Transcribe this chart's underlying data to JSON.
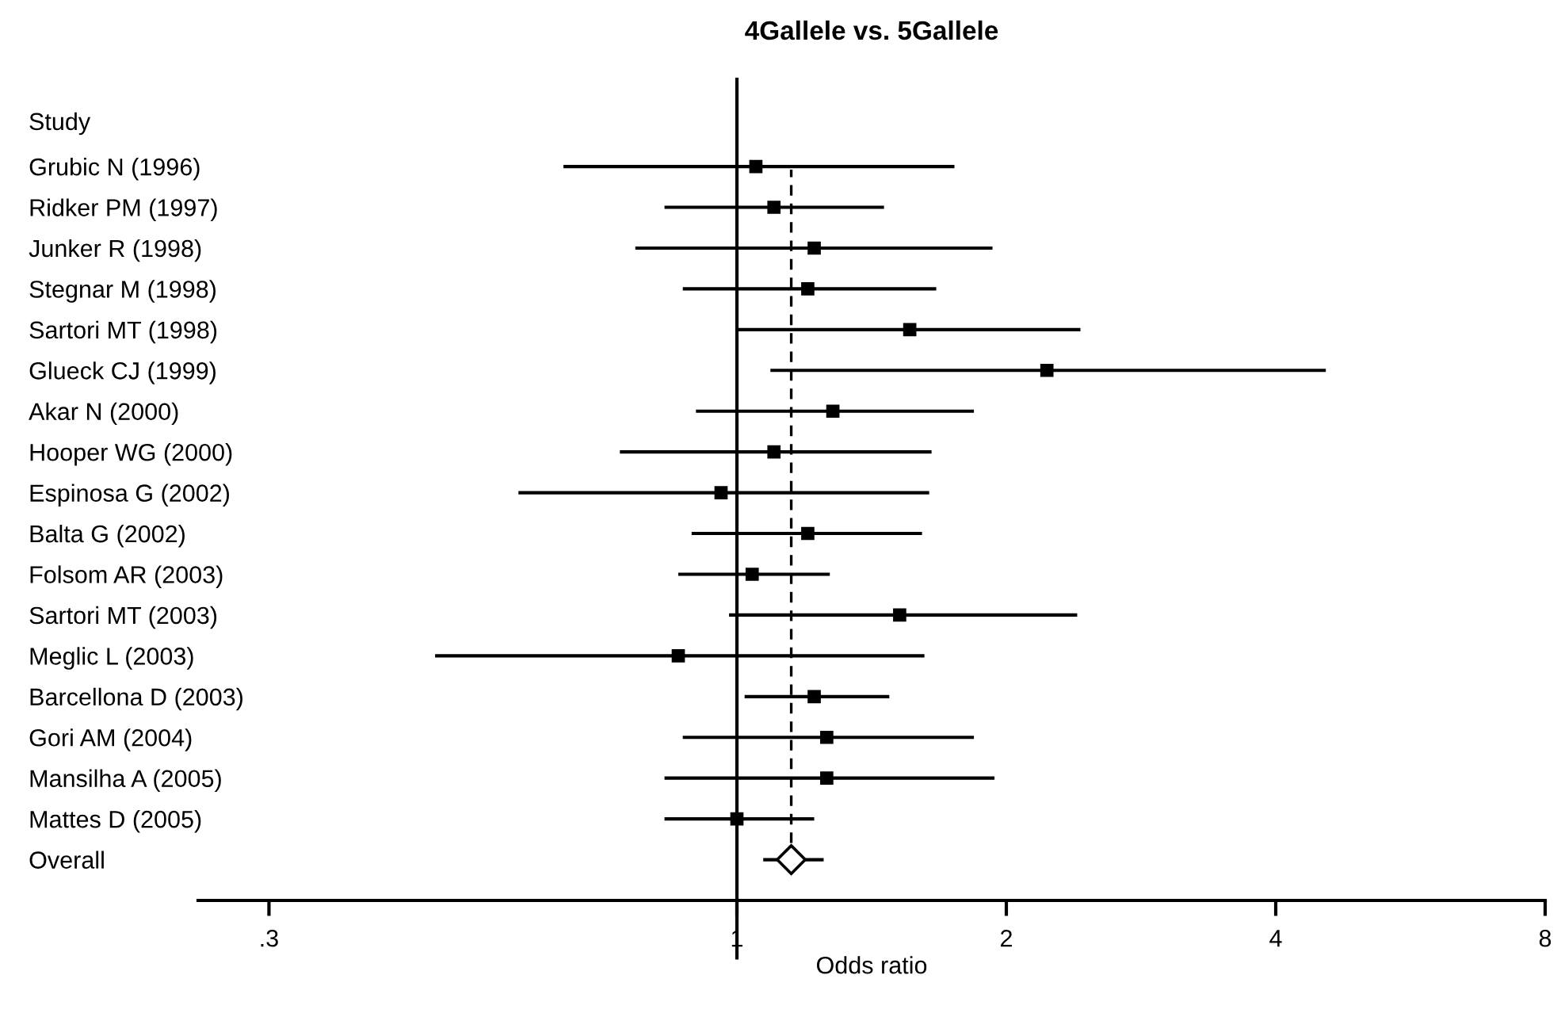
{
  "chart_data": {
    "type": "scatter",
    "orientation": "horizontal",
    "title": "4Gallele vs. 5Gallele",
    "xlabel": "Odds ratio",
    "ylabel": "Study",
    "categories": [
      "Grubic N (1996)",
      "Ridker PM (1997)",
      "Junker R (1998)",
      "Stegnar M (1998)",
      "Sartori MT (1998)",
      "Glueck CJ (1999)",
      "Akar N (2000)",
      "Hooper WG (2000)",
      "Espinosa G (2002)",
      "Balta G (2002)",
      "Folsom AR (2003)",
      "Sartori MT (2003)",
      "Meglic L (2003)",
      "Barcellona D (2003)",
      "Gori AM (2004)",
      "Mansilha A (2005)",
      "Mattes D (2005)",
      "Overall"
    ],
    "series": [
      {
        "color": "#000000",
        "marker": "square",
        "values": [
          1.05,
          1.1,
          1.22,
          1.2,
          1.56,
          2.22,
          1.28,
          1.1,
          0.96,
          1.2,
          1.04,
          1.52,
          0.86,
          1.22,
          1.26,
          1.26,
          1.0,
          null
        ],
        "errors": [
          [
            0.64,
            1.75
          ],
          [
            0.83,
            1.46
          ],
          [
            0.77,
            1.93
          ],
          [
            0.87,
            1.67
          ],
          [
            1.0,
            2.42
          ],
          [
            1.09,
            4.55
          ],
          [
            0.9,
            1.84
          ],
          [
            0.74,
            1.65
          ],
          [
            0.57,
            1.64
          ],
          [
            0.89,
            1.61
          ],
          [
            0.86,
            1.27
          ],
          [
            0.98,
            2.4
          ],
          [
            0.46,
            1.62
          ],
          [
            1.02,
            1.48
          ],
          [
            0.87,
            1.84
          ],
          [
            0.83,
            1.94
          ],
          [
            0.83,
            1.22
          ],
          null
        ]
      },
      {
        "color": "#000000",
        "marker": "diamond",
        "values": [
          null,
          null,
          null,
          null,
          null,
          null,
          null,
          null,
          null,
          null,
          null,
          null,
          null,
          null,
          null,
          null,
          null,
          1.15
        ],
        "errors": [
          null,
          null,
          null,
          null,
          null,
          null,
          null,
          null,
          null,
          null,
          null,
          null,
          null,
          null,
          null,
          null,
          null,
          [
            1.07,
            1.25
          ]
        ]
      }
    ],
    "log": "x",
    "xlim": [
      0.25,
      8
    ],
    "xticks": [
      {
        "value": 0.3,
        "label": ".3"
      },
      1,
      2,
      4,
      8
    ],
    "ref_lines": [
      {
        "axis": "x",
        "value": 1,
        "color": "#000000",
        "line_style": "solid"
      },
      {
        "axis": "x",
        "value": 1.15,
        "color": "#000000",
        "line_style": "dashed"
      }
    ],
    "grid": false,
    "legend": false
  }
}
